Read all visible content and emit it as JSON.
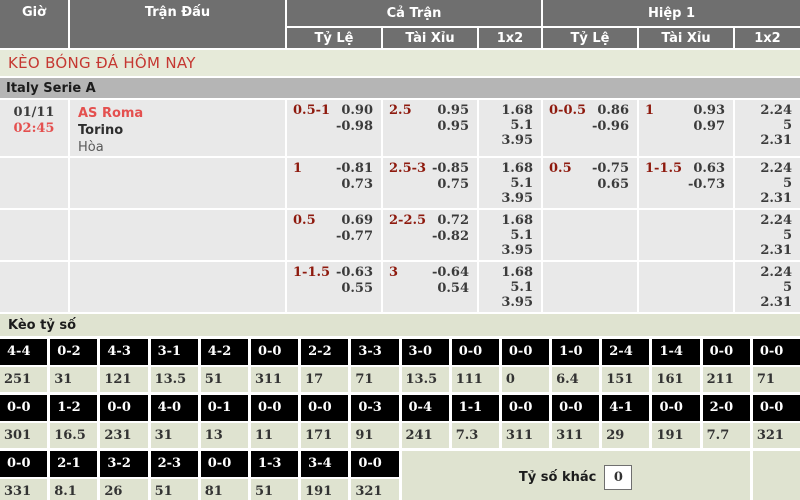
{
  "colors": {
    "header_bg": "#6f6f6f",
    "title_text": "#c53832",
    "title_bg": "#e6ead9",
    "league_bg": "#b5b5b5",
    "row_bg": "#e9e9e9",
    "handicap_text": "#8e1a0e",
    "team_home_text": "#e4504f",
    "score_cell_bg": "#000000",
    "score_value_bg": "#dfe3d0"
  },
  "header": {
    "time": "Giờ",
    "match": "Trận Đấu",
    "full_time": "Cả Trận",
    "first_half": "Hiệp 1",
    "handicap": "Tỷ Lệ",
    "over_under": "Tài Xỉu",
    "one_x_two": "1x2"
  },
  "title": "KÈO BÓNG ĐÁ HÔM NAY",
  "league": "Italy Serie A",
  "match": {
    "date": "01/11",
    "time": "02:45",
    "home": "AS Roma",
    "away": "Torino",
    "draw": "Hòa"
  },
  "odds": [
    {
      "ft_h": "0.5-1",
      "ft_h1": "0.90",
      "ft_h2": "-0.98",
      "ft_ou": "2.5",
      "ft_ou1": "0.95",
      "ft_ou2": "0.95",
      "ft_x": [
        "1.68",
        "5.1",
        "3.95"
      ],
      "h1_h": "0-0.5",
      "h1_h1": "0.86",
      "h1_h2": "-0.96",
      "h1_ou": "1",
      "h1_ou1": "0.93",
      "h1_ou2": "0.97",
      "h1_x": [
        "2.24",
        "5",
        "2.31"
      ]
    },
    {
      "ft_h": "1",
      "ft_h1": "-0.81",
      "ft_h2": "0.73",
      "ft_ou": "2.5-3",
      "ft_ou1": "-0.85",
      "ft_ou2": "0.75",
      "ft_x": [
        "1.68",
        "5.1",
        "3.95"
      ],
      "h1_h": "0.5",
      "h1_h1": "-0.75",
      "h1_h2": "0.65",
      "h1_ou": "1-1.5",
      "h1_ou1": "0.63",
      "h1_ou2": "-0.73",
      "h1_x": [
        "2.24",
        "5",
        "2.31"
      ]
    },
    {
      "ft_h": "0.5",
      "ft_h1": "0.69",
      "ft_h2": "-0.77",
      "ft_ou": "2-2.5",
      "ft_ou1": "0.72",
      "ft_ou2": "-0.82",
      "ft_x": [
        "1.68",
        "5.1",
        "3.95"
      ],
      "h1_h": "",
      "h1_h1": "",
      "h1_h2": "",
      "h1_ou": "",
      "h1_ou1": "",
      "h1_ou2": "",
      "h1_x": [
        "2.24",
        "5",
        "2.31"
      ]
    },
    {
      "ft_h": "1-1.5",
      "ft_h1": "-0.63",
      "ft_h2": "0.55",
      "ft_ou": "3",
      "ft_ou1": "-0.64",
      "ft_ou2": "0.54",
      "ft_x": [
        "1.68",
        "5.1",
        "3.95"
      ],
      "h1_h": "",
      "h1_h1": "",
      "h1_h2": "",
      "h1_ou": "",
      "h1_ou1": "",
      "h1_ou2": "",
      "h1_x": [
        "2.24",
        "5",
        "2.31"
      ]
    }
  ],
  "scores": {
    "title": "Kèo tỷ số",
    "other_label": "Tỷ số khác",
    "other_value": "0",
    "rows": [
      [
        {
          "s": "4-4",
          "o": "251"
        },
        {
          "s": "0-2",
          "o": "31"
        },
        {
          "s": "4-3",
          "o": "121"
        },
        {
          "s": "3-1",
          "o": "13.5"
        },
        {
          "s": "4-2",
          "o": "51"
        },
        {
          "s": "0-0",
          "o": "311"
        },
        {
          "s": "2-2",
          "o": "17"
        },
        {
          "s": "3-3",
          "o": "71"
        },
        {
          "s": "3-0",
          "o": "13.5"
        },
        {
          "s": "0-0",
          "o": "111"
        },
        {
          "s": "0-0",
          "o": "0"
        },
        {
          "s": "1-0",
          "o": "6.4"
        },
        {
          "s": "2-4",
          "o": "151"
        },
        {
          "s": "1-4",
          "o": "161"
        },
        {
          "s": "0-0",
          "o": "211"
        },
        {
          "s": "0-0",
          "o": "71"
        }
      ],
      [
        {
          "s": "0-0",
          "o": "301"
        },
        {
          "s": "1-2",
          "o": "16.5"
        },
        {
          "s": "0-0",
          "o": "231"
        },
        {
          "s": "4-0",
          "o": "31"
        },
        {
          "s": "0-1",
          "o": "13"
        },
        {
          "s": "0-0",
          "o": "11"
        },
        {
          "s": "0-0",
          "o": "171"
        },
        {
          "s": "0-3",
          "o": "91"
        },
        {
          "s": "0-4",
          "o": "241"
        },
        {
          "s": "1-1",
          "o": "7.3"
        },
        {
          "s": "0-0",
          "o": "311"
        },
        {
          "s": "0-0",
          "o": "311"
        },
        {
          "s": "4-1",
          "o": "29"
        },
        {
          "s": "0-0",
          "o": "191"
        },
        {
          "s": "2-0",
          "o": "7.7"
        },
        {
          "s": "0-0",
          "o": "321"
        }
      ],
      [
        {
          "s": "0-0",
          "o": "331"
        },
        {
          "s": "2-1",
          "o": "8.1"
        },
        {
          "s": "3-2",
          "o": "26"
        },
        {
          "s": "2-3",
          "o": "51"
        },
        {
          "s": "0-0",
          "o": "81"
        },
        {
          "s": "1-3",
          "o": "51"
        },
        {
          "s": "3-4",
          "o": "191"
        },
        {
          "s": "0-0",
          "o": "321"
        }
      ]
    ]
  }
}
